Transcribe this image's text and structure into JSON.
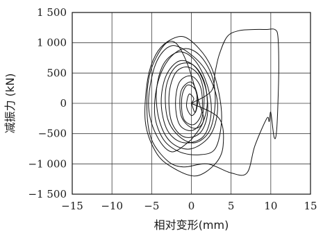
{
  "chart_data": {
    "type": "line",
    "title": "",
    "xlabel": "相对变形(mm)",
    "ylabel": "减振力 (kN)",
    "xlim": [
      -15,
      15
    ],
    "ylim": [
      -1500,
      1500
    ],
    "x_ticks": [
      -15,
      -10,
      -5,
      0,
      5,
      10,
      15
    ],
    "y_ticks": [
      -1500,
      -1000,
      -500,
      0,
      500,
      1000,
      1500
    ],
    "x_tick_labels": [
      "−15",
      "−10",
      "−5",
      "0",
      "5",
      "10",
      "15"
    ],
    "y_tick_labels": [
      "−1 500",
      "−1 000",
      "−500",
      "0",
      "500",
      "1 000",
      "1 500"
    ],
    "grid": true,
    "legend": "none",
    "line_color": "#111111",
    "series": [
      {
        "values": [
          [
            0,
            0
          ],
          [
            2.5,
            200
          ],
          [
            3.0,
            520
          ],
          [
            3.5,
            800
          ],
          [
            4.5,
            1100
          ],
          [
            6.0,
            1200
          ],
          [
            8.0,
            1220
          ],
          [
            9.5,
            1220
          ],
          [
            10.5,
            1220
          ],
          [
            10.9,
            1100
          ],
          [
            11.0,
            600
          ],
          [
            10.9,
            0
          ],
          [
            10.7,
            -500
          ],
          [
            10.4,
            -550
          ],
          [
            10.0,
            -150
          ],
          [
            9.8,
            -300
          ],
          [
            9.5,
            -250
          ],
          [
            8.0,
            -700
          ],
          [
            7.0,
            -1150
          ],
          [
            5.0,
            -1150
          ],
          [
            2.0,
            -1000
          ],
          [
            -1.0,
            -1050
          ],
          [
            -3.0,
            -950
          ],
          [
            -5.0,
            -600
          ],
          [
            -5.6,
            -100
          ],
          [
            -5.2,
            500
          ],
          [
            -3.5,
            950
          ],
          [
            -2.0,
            1000
          ],
          [
            -0.5,
            650
          ],
          [
            1.0,
            0
          ],
          [
            1.5,
            -300
          ],
          [
            0,
            -600
          ]
        ]
      },
      {
        "values": [
          [
            0,
            -600
          ],
          [
            -2.5,
            -800
          ],
          [
            -4.5,
            -500
          ],
          [
            -5.4,
            0
          ],
          [
            -4.5,
            650
          ],
          [
            -2.5,
            950
          ],
          [
            0,
            800
          ],
          [
            2.0,
            500
          ],
          [
            3.3,
            0
          ],
          [
            2.5,
            -500
          ],
          [
            0,
            -750
          ],
          [
            -2.5,
            -650
          ],
          [
            -4.0,
            -300
          ],
          [
            -4.4,
            200
          ],
          [
            -3.5,
            650
          ],
          [
            -1.5,
            850
          ],
          [
            0.5,
            700
          ],
          [
            2.0,
            300
          ],
          [
            2.5,
            -150
          ],
          [
            1.5,
            -550
          ],
          [
            -1.0,
            -650
          ],
          [
            -3.0,
            -450
          ],
          [
            -3.8,
            0
          ],
          [
            -3.2,
            450
          ],
          [
            -1.5,
            700
          ],
          [
            0.5,
            600
          ],
          [
            1.8,
            250
          ],
          [
            2.0,
            -200
          ],
          [
            1.0,
            -500
          ],
          [
            -1.0,
            -550
          ],
          [
            -2.5,
            -300
          ],
          [
            -2.8,
            150
          ],
          [
            -2.0,
            500
          ],
          [
            -0.5,
            600
          ],
          [
            1.0,
            450
          ],
          [
            1.6,
            100
          ],
          [
            1.2,
            -300
          ],
          [
            0,
            -450
          ],
          [
            -1.5,
            -350
          ],
          [
            -2.0,
            0
          ],
          [
            -1.5,
            350
          ],
          [
            0,
            450
          ],
          [
            1.2,
            250
          ],
          [
            1.3,
            -150
          ],
          [
            0.3,
            -350
          ],
          [
            -1.0,
            -250
          ],
          [
            -1.2,
            100
          ],
          [
            -0.5,
            300
          ],
          [
            0.6,
            200
          ],
          [
            0.6,
            -100
          ],
          [
            0,
            -200
          ],
          [
            -0.6,
            -50
          ],
          [
            -0.3,
            150
          ],
          [
            0.3,
            80
          ],
          [
            0,
            0
          ]
        ]
      },
      {
        "values": [
          [
            0,
            0
          ],
          [
            3.5,
            -250
          ],
          [
            4.0,
            -700
          ],
          [
            3.0,
            -1000
          ],
          [
            0.5,
            -1200
          ],
          [
            -2.5,
            -1050
          ],
          [
            -4.5,
            -800
          ],
          [
            -5.8,
            -300
          ],
          [
            -5.5,
            400
          ],
          [
            -4.5,
            800
          ],
          [
            -3.0,
            1020
          ],
          [
            -1.0,
            1100
          ],
          [
            1.0,
            900
          ],
          [
            2.5,
            600
          ],
          [
            3.5,
            150
          ],
          [
            3.8,
            -300
          ],
          [
            3.0,
            -750
          ],
          [
            1.0,
            -850
          ],
          [
            -1.5,
            -800
          ],
          [
            -3.5,
            -600
          ],
          [
            -4.6,
            -200
          ],
          [
            -4.3,
            300
          ],
          [
            -3.0,
            700
          ],
          [
            -1.0,
            900
          ],
          [
            1.0,
            800
          ],
          [
            2.6,
            450
          ],
          [
            3.0,
            0
          ],
          [
            2.3,
            -450
          ],
          [
            0.5,
            -650
          ],
          [
            -1.5,
            -550
          ],
          [
            -3.0,
            -250
          ],
          [
            -3.2,
            250
          ],
          [
            -2.0,
            600
          ],
          [
            0,
            650
          ],
          [
            1.5,
            400
          ],
          [
            2.0,
            0
          ],
          [
            1.3,
            -350
          ],
          [
            0,
            -400
          ],
          [
            -1.3,
            -200
          ],
          [
            -1.3,
            200
          ],
          [
            0,
            350
          ],
          [
            0.8,
            100
          ],
          [
            0.5,
            -150
          ],
          [
            0,
            0
          ]
        ]
      }
    ]
  }
}
